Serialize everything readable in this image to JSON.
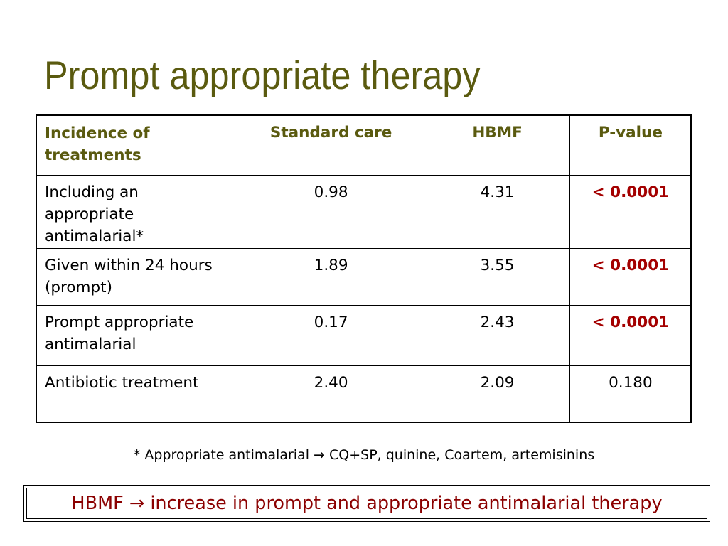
{
  "slide": {
    "title": "Prompt appropriate therapy"
  },
  "table": {
    "headers": [
      "Incidence of treatments",
      "Standard care",
      "HBMF",
      "P-value"
    ],
    "rows": [
      {
        "label": "Including an appropriate antimalarial*",
        "standard_care": "0.98",
        "hbmf": "4.31",
        "p_value": "< 0.0001",
        "significant": true
      },
      {
        "label": "Given within 24 hours (prompt)",
        "standard_care": "1.89",
        "hbmf": "3.55",
        "p_value": "< 0.0001",
        "significant": true
      },
      {
        "label": "Prompt appropriate antimalarial",
        "standard_care": "0.17",
        "hbmf": "2.43",
        "p_value": "< 0.0001",
        "significant": true
      },
      {
        "label": "Antibiotic treatment",
        "standard_care": "2.40",
        "hbmf": "2.09",
        "p_value": "0.180",
        "significant": false
      }
    ]
  },
  "footnote": "* Appropriate antimalarial → CQ+SP, quinine, Coartem, artemisinins",
  "conclusion": "HBMF → increase in prompt and appropriate antimalarial therapy",
  "colors": {
    "title": "#5a5a0f",
    "significant": "#a40000",
    "conclusion": "#8b0000"
  }
}
